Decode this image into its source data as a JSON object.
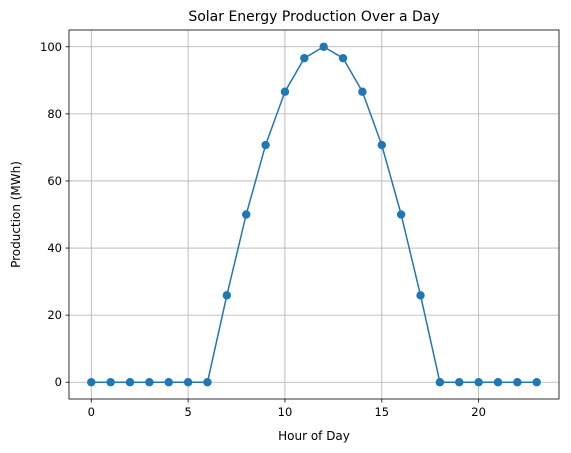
{
  "chart_data": {
    "type": "line",
    "title": "Solar Energy Production Over a Day",
    "xlabel": "Hour of Day",
    "ylabel": "Production (MWh)",
    "x": [
      0,
      1,
      2,
      3,
      4,
      5,
      6,
      7,
      8,
      9,
      10,
      11,
      12,
      13,
      14,
      15,
      16,
      17,
      18,
      19,
      20,
      21,
      22,
      23
    ],
    "series": [
      {
        "values": [
          0,
          0,
          0,
          0,
          0,
          0,
          0,
          25.9,
          50,
          70.7,
          86.6,
          96.6,
          100,
          96.6,
          86.6,
          70.7,
          50,
          25.9,
          0,
          0,
          0,
          0,
          0,
          0
        ],
        "color": "#1f77b4",
        "marker": "circle"
      }
    ],
    "xlim": [
      -1.15,
      24.15
    ],
    "ylim": [
      -5,
      105
    ],
    "xticks": [
      0,
      5,
      10,
      15,
      20
    ],
    "yticks": [
      0,
      20,
      40,
      60,
      80,
      100
    ],
    "grid": true,
    "legend": false
  }
}
